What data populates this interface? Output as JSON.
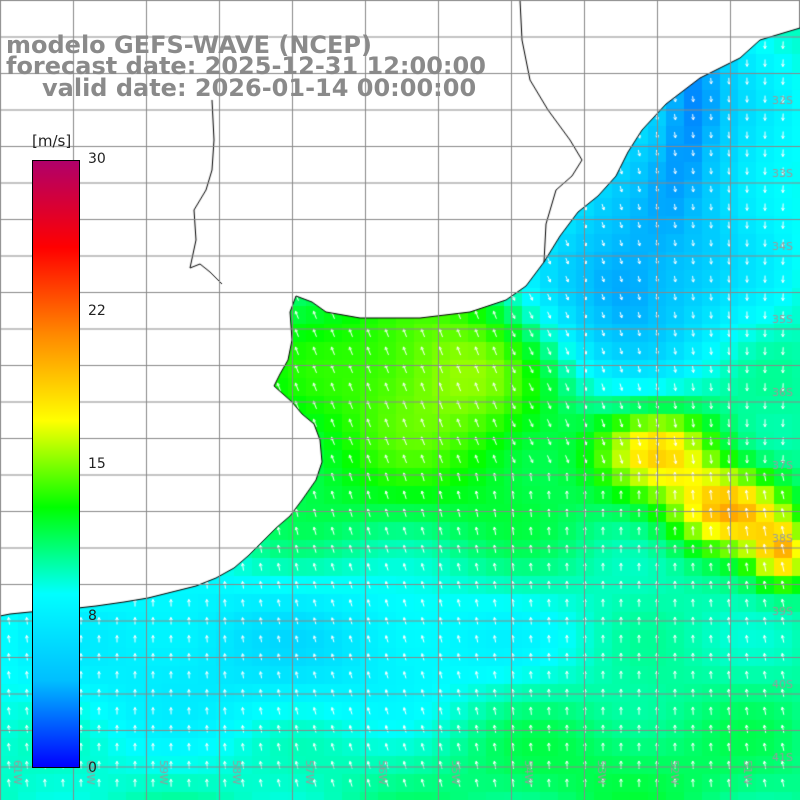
{
  "title": {
    "line1": "modelo GEFS-WAVE (NCEP)",
    "line2": "forecast date: 2025-12-31 12:00:00",
    "line3": "valid date: 2026-01-14 00:00:00"
  },
  "colorbar": {
    "unit": "[m/s]",
    "min": 0,
    "max": 30,
    "ticks": [
      "30",
      "22",
      "15",
      "8",
      "0"
    ],
    "tick_values": [
      30,
      22,
      15,
      8,
      0
    ],
    "gradient_stops": [
      "#0000ff",
      "#00bfff",
      "#00ffff",
      "#00ff00",
      "#ffff00",
      "#ff8800",
      "#ff0000",
      "#b0006a"
    ]
  },
  "grid": {
    "lon_labels": [
      "61W",
      "60W",
      "59W",
      "58W",
      "57W",
      "56W",
      "55W",
      "54W",
      "53W",
      "52W",
      "51W"
    ],
    "lat_labels": [
      "32S",
      "33S",
      "34S",
      "35S",
      "36S",
      "37S",
      "38S",
      "39S",
      "40S",
      "41S"
    ],
    "line_color": "#888888",
    "label_color": "#9a9a9a"
  },
  "map": {
    "land_color": "#ffffff",
    "coastline_color": "#000000",
    "arrow_color": "#ffffff"
  }
}
